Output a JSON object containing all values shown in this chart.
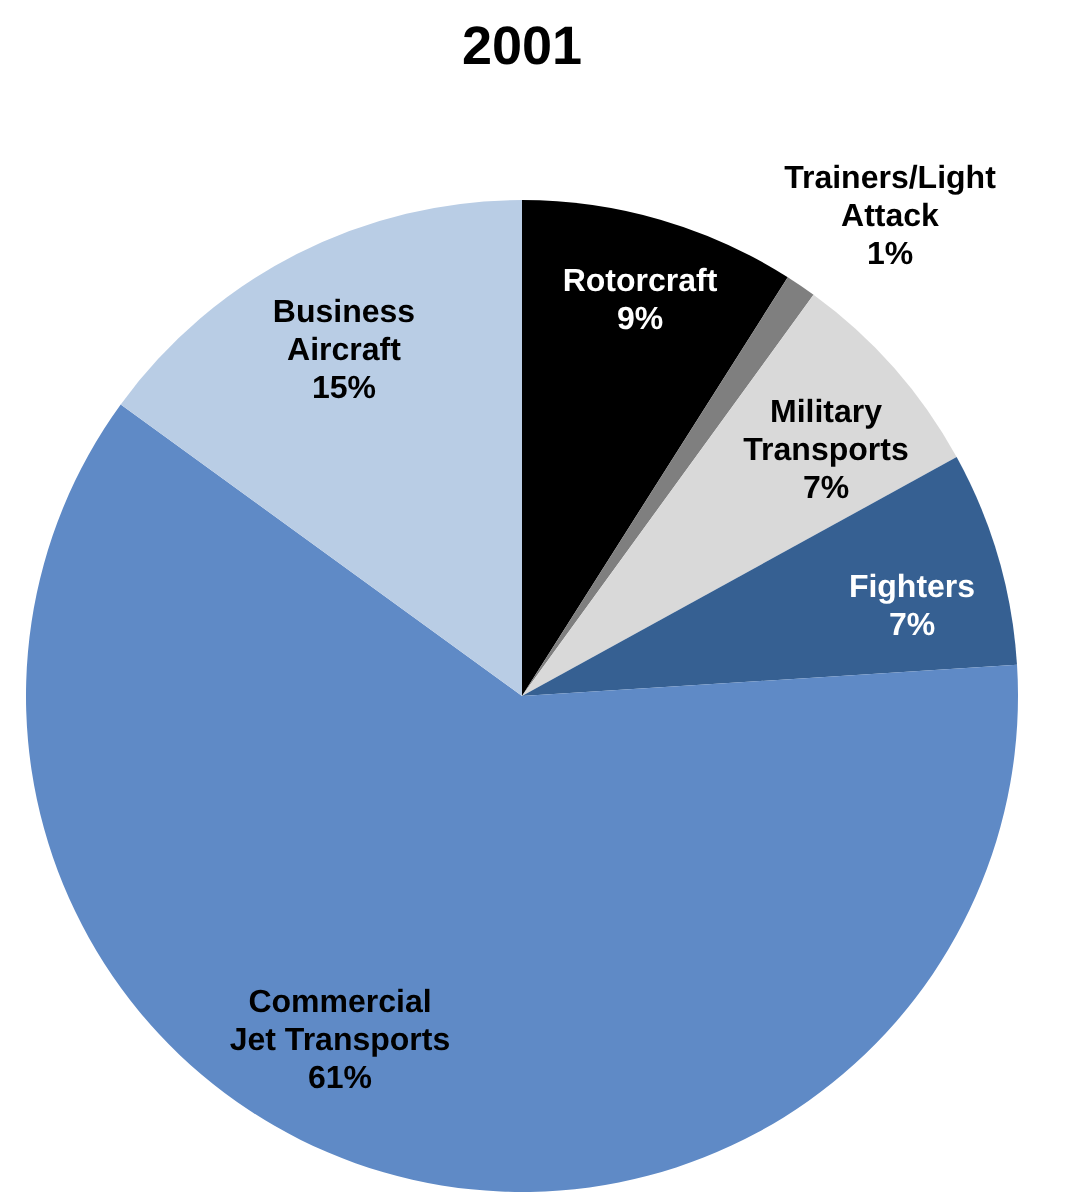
{
  "chart_data": {
    "type": "pie",
    "title": "2001",
    "categories": [
      "Rotorcraft",
      "Trainers/Light Attack",
      "Military Transports",
      "Fighters",
      "Commercial Jet Transports",
      "Business Aircraft"
    ],
    "values": [
      9,
      1,
      7,
      7,
      61,
      15
    ],
    "colors": [
      "#000000",
      "#7f7f7f",
      "#d9d9d9",
      "#366092",
      "#5f8ac6",
      "#b9cde5"
    ],
    "value_labels": [
      "9%",
      "1%",
      "7%",
      "7%",
      "61%",
      "15%"
    ]
  }
}
